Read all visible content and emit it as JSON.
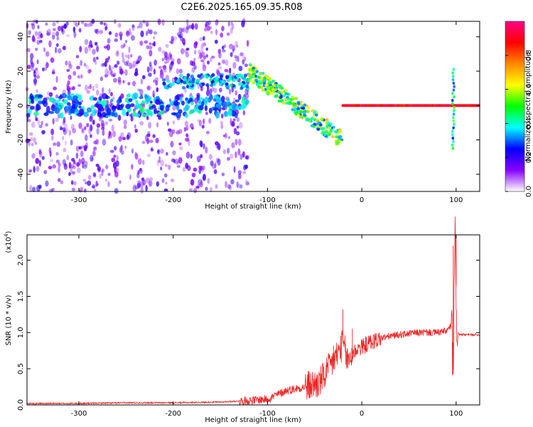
{
  "figure_title": "C2E6.2025.165.09.35.R08",
  "chart_data": [
    {
      "type": "heatmap",
      "title": "",
      "xlabel": "Height of straight line (km)",
      "ylabel": "Frequency (Hz)",
      "xlim": [
        -355,
        125
      ],
      "ylim": [
        -50,
        49
      ],
      "x_ticks": [
        -300,
        -200,
        -100,
        0,
        100
      ],
      "y_ticks": [
        -40,
        -20,
        0,
        20,
        40
      ],
      "colorbar": {
        "label": "Normalized spectral amplitude",
        "range": [
          0,
          1
        ],
        "ticks": [
          "0.0",
          "0.2",
          "0.4",
          "0.6",
          "0.8"
        ],
        "colors": [
          "#ffffff",
          "#8800ff",
          "#0000ff",
          "#00ffff",
          "#00ff00",
          "#ffff00",
          "#ff8800",
          "#ff0000",
          "#ff0088"
        ]
      },
      "features": [
        {
          "x": [
            -355,
            -120
          ],
          "freq": [
            -50,
            49
          ],
          "level": 0.15,
          "kind": "diffuse scatter"
        },
        {
          "x": [
            -210,
            -120
          ],
          "freq": [
            10,
            18
          ],
          "level": 0.3,
          "kind": "band"
        },
        {
          "x": [
            -120,
            -20
          ],
          "freq": [
            20,
            -20
          ],
          "level": 0.5,
          "kind": "descending trace"
        },
        {
          "x": [
            -20,
            125
          ],
          "freq": [
            0,
            0
          ],
          "level": 0.9,
          "kind": "carrier line"
        },
        {
          "x": [
            97,
            97
          ],
          "freq": [
            -25,
            22
          ],
          "level": 0.4,
          "kind": "spike"
        }
      ]
    },
    {
      "type": "line",
      "title": "",
      "xlabel": "Height of straight line (km)",
      "ylabel": "SNR (10 * v/v)",
      "y_multiplier": "(x10",
      "y_multiplier_exp": "4",
      "y_multiplier_close": ")",
      "xlim": [
        -355,
        125
      ],
      "ylim": [
        0,
        2.35
      ],
      "x_ticks": [
        -300,
        -200,
        -100,
        0,
        100
      ],
      "y_ticks": [
        "0.0",
        "0.5",
        "1.0",
        "1.5",
        "2.0"
      ],
      "color": "#ee2222",
      "series": [
        {
          "x": [
            -355,
            -300,
            -250,
            -200,
            -150,
            -120,
            -100,
            -80,
            -60,
            -45,
            -35,
            -25,
            -20,
            -15,
            -10,
            -5,
            0,
            10,
            20,
            30,
            40,
            60,
            80,
            90,
            95,
            97,
            99,
            101,
            104,
            110,
            125
          ],
          "y": [
            0.02,
            0.02,
            0.03,
            0.03,
            0.04,
            0.06,
            0.08,
            0.2,
            0.25,
            0.3,
            0.5,
            0.72,
            0.85,
            0.6,
            0.7,
            0.78,
            0.8,
            0.87,
            0.92,
            0.95,
            0.97,
            1.0,
            1.0,
            1.02,
            1.1,
            0.5,
            2.3,
            1.0,
            0.97,
            0.97,
            0.97
          ]
        }
      ],
      "peaks": [
        {
          "x": -20,
          "y": 1.32
        },
        {
          "x": -30,
          "y": 0.82
        },
        {
          "x": -10,
          "y": 1.05
        },
        {
          "x": 97,
          "y": 2.2
        },
        {
          "x": 100,
          "y": 2.35
        }
      ]
    }
  ]
}
